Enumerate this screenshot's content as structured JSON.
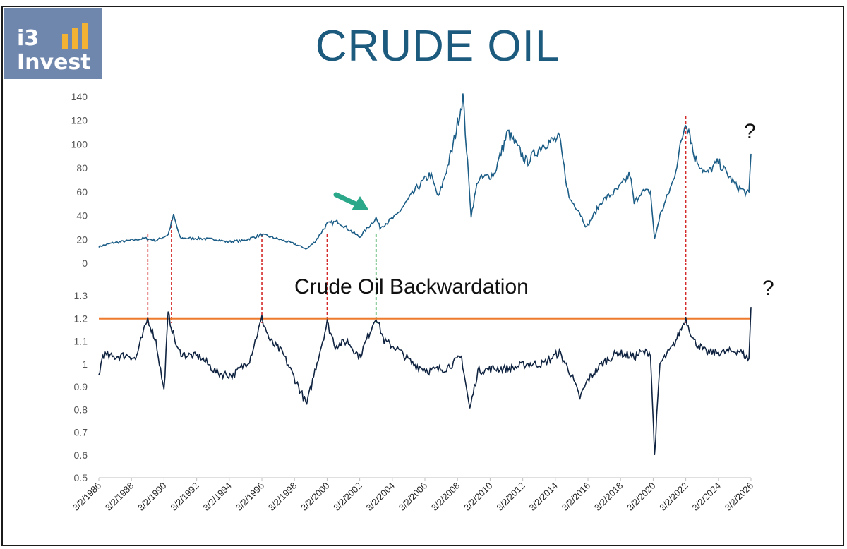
{
  "brand": {
    "line1": "i3",
    "line2": "Invest",
    "accent": "#f2b233",
    "bg": "#6f86ad"
  },
  "title": "CRUDE OIL",
  "chart_data": [
    {
      "type": "line",
      "name": "",
      "title": "",
      "ylim": [
        0,
        140
      ],
      "yticks": [
        0,
        20,
        40,
        60,
        80,
        100,
        120,
        140
      ],
      "xlim": [
        "1986-03-02",
        "2026-03-02"
      ],
      "color": "#1b5d86",
      "series": [
        {
          "name": "",
          "x": [
            "1986-03-02",
            "1987-01-01",
            "1988-01-01",
            "1989-01-01",
            "1989-09-01",
            "1990-06-01",
            "1990-10-01",
            "1991-03-01",
            "1992-01-01",
            "1993-06-01",
            "1994-01-01",
            "1995-01-01",
            "1996-03-02",
            "1997-01-01",
            "1998-01-01",
            "1998-12-01",
            "1999-06-01",
            "2000-03-02",
            "2000-11-01",
            "2001-11-01",
            "2002-03-01",
            "2003-03-02",
            "2003-06-01",
            "2004-06-01",
            "2005-09-01",
            "2006-07-01",
            "2007-01-01",
            "2007-11-01",
            "2008-07-01",
            "2009-01-01",
            "2009-06-01",
            "2010-06-01",
            "2011-04-01",
            "2012-06-01",
            "2013-06-01",
            "2014-06-01",
            "2015-01-01",
            "2015-08-01",
            "2016-02-01",
            "2017-01-01",
            "2018-01-01",
            "2018-10-01",
            "2019-01-01",
            "2019-06-01",
            "2020-01-01",
            "2020-04-01",
            "2020-08-01",
            "2021-06-01",
            "2022-03-02",
            "2022-06-01",
            "2022-09-01",
            "2023-06-01",
            "2024-03-01",
            "2025-04-01",
            "2026-01-15",
            "2026-03-02"
          ],
          "values": [
            14,
            17,
            19,
            21,
            19,
            24,
            40,
            21,
            21,
            20,
            18,
            19,
            24,
            21,
            17,
            12,
            18,
            33,
            35,
            25,
            22,
            38,
            30,
            40,
            63,
            75,
            55,
            95,
            140,
            40,
            70,
            75,
            110,
            85,
            100,
            105,
            55,
            45,
            30,
            52,
            62,
            75,
            50,
            60,
            60,
            20,
            40,
            70,
            120,
            110,
            90,
            75,
            85,
            65,
            58,
            92
          ]
        }
      ],
      "annotations": [
        "?"
      ]
    },
    {
      "type": "line",
      "title": "Crude Oil Backwardation",
      "ylim": [
        0.5,
        1.3
      ],
      "yticks": [
        0.5,
        0.6,
        0.7,
        0.8,
        0.9,
        1,
        1.1,
        1.2,
        1.3
      ],
      "xlim": [
        "1986-03-02",
        "2026-03-02"
      ],
      "xticks": [
        "3/2/1986",
        "3/2/1988",
        "3/2/1990",
        "3/2/1992",
        "3/2/1994",
        "3/2/1996",
        "3/2/1998",
        "3/2/2000",
        "3/2/2002",
        "3/2/2004",
        "3/2/2006",
        "3/2/2008",
        "3/2/2010",
        "3/2/2012",
        "3/2/2014",
        "3/2/2016",
        "3/2/2018",
        "3/2/2020",
        "3/2/2022",
        "3/2/2024",
        "3/2/2026"
      ],
      "color": "#0f2340",
      "threshold": {
        "value": 1.2,
        "color": "#ee7a2e"
      },
      "series": [
        {
          "name": "",
          "x": [
            "1986-03-02",
            "1986-06-01",
            "1987-01-01",
            "1988-01-01",
            "1988-06-01",
            "1989-03-02",
            "1989-09-01",
            "1990-03-01",
            "1990-06-01",
            "1990-09-01",
            "1991-01-01",
            "1991-06-01",
            "1992-06-01",
            "1993-06-01",
            "1994-06-01",
            "1995-06-01",
            "1996-03-02",
            "1996-09-01",
            "1997-06-01",
            "1998-06-01",
            "1998-12-01",
            "1999-06-01",
            "2000-03-02",
            "2000-09-01",
            "2001-06-01",
            "2002-03-01",
            "2003-03-02",
            "2003-09-01",
            "2004-06-01",
            "2005-06-01",
            "2006-06-01",
            "2007-06-01",
            "2008-06-01",
            "2008-12-01",
            "2009-06-01",
            "2010-06-01",
            "2011-06-01",
            "2012-06-01",
            "2013-06-01",
            "2014-06-01",
            "2015-03-01",
            "2015-09-01",
            "2016-03-01",
            "2017-01-01",
            "2018-01-01",
            "2019-01-01",
            "2019-06-01",
            "2020-01-01",
            "2020-04-01",
            "2020-08-01",
            "2021-06-01",
            "2022-03-02",
            "2022-09-01",
            "2023-06-01",
            "2024-06-01",
            "2025-06-01",
            "2026-01-15",
            "2026-03-02"
          ],
          "values": [
            0.95,
            1.04,
            1.03,
            1.04,
            1.02,
            1.2,
            1.1,
            0.88,
            1.22,
            1.15,
            1.06,
            1.04,
            1.03,
            0.96,
            0.95,
            1.02,
            1.2,
            1.1,
            1.05,
            0.9,
            0.82,
            0.97,
            1.18,
            1.08,
            1.1,
            1.03,
            1.21,
            1.1,
            1.07,
            1.0,
            0.97,
            0.98,
            1.03,
            0.8,
            0.97,
            0.98,
            0.98,
            1.0,
            1.0,
            1.05,
            0.95,
            0.85,
            0.93,
            1.0,
            1.05,
            1.03,
            1.05,
            1.05,
            0.6,
            1.0,
            1.08,
            1.2,
            1.1,
            1.05,
            1.05,
            1.06,
            1.02,
            1.25
          ]
        }
      ],
      "annotations": [
        "?"
      ]
    }
  ],
  "marker_dates": {
    "red": [
      "1989-03-02",
      "1990-08-15",
      "1996-03-02",
      "2000-03-02",
      "2022-03-02"
    ],
    "green": [
      "2003-03-02"
    ],
    "red_color": "#d42a2a",
    "green_color": "#1f9e3e"
  },
  "arrow_color": "#2aa889"
}
